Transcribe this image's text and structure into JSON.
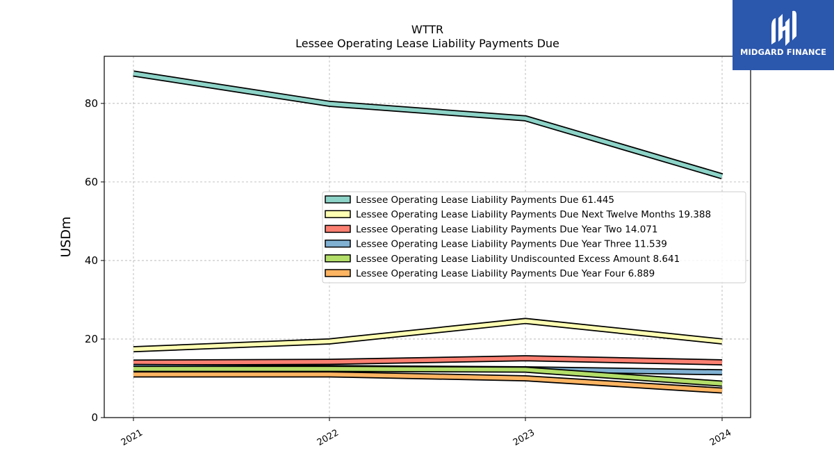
{
  "logo": {
    "text": "MIDGARD FINANCE",
    "background": "#2b57ad"
  },
  "chart_data": {
    "type": "line",
    "title": "WTTR",
    "subtitle": "Lessee Operating Lease Liability Payments Due",
    "xlabel": "",
    "ylabel": "USDm",
    "categories": [
      "2021",
      "2022",
      "2023",
      "2024"
    ],
    "ylim": [
      0,
      92
    ],
    "yticks": [
      0,
      20,
      40,
      60,
      80
    ],
    "grid": true,
    "legend_position": "center-right",
    "series": [
      {
        "name": "Lessee Operating Lease Liability Payments Due",
        "legend_value": "61.445",
        "color": "#8dd3c7",
        "values": [
          87.6,
          79.9,
          76.2,
          61.445
        ]
      },
      {
        "name": "Lessee Operating Lease Liability Payments Due Next Twelve Months",
        "legend_value": "19.388",
        "color": "#ffffb3",
        "values": [
          17.4,
          19.4,
          24.6,
          19.388
        ]
      },
      {
        "name": "Lessee Operating Lease Liability Payments Due Year Two",
        "legend_value": "14.071",
        "color": "#fb8072",
        "values": [
          14.0,
          14.2,
          15.1,
          14.071
        ]
      },
      {
        "name": "Lessee Operating Lease Liability Payments Due Year Three",
        "legend_value": "11.539",
        "color": "#80b1d3",
        "values": [
          12.9,
          12.6,
          12.3,
          11.539
        ]
      },
      {
        "name": "Lessee Operating Lease Liability Undiscounted Excess Amount",
        "legend_value": "8.641",
        "color": "#b3de69",
        "values": [
          12.4,
          12.4,
          12.2,
          8.641
        ]
      },
      {
        "name": "Lessee Operating Lease Liability Payments Due Year Four",
        "legend_value": "6.889",
        "color": "#fdb462",
        "values": [
          11.0,
          11.0,
          10.0,
          6.889
        ]
      }
    ]
  }
}
